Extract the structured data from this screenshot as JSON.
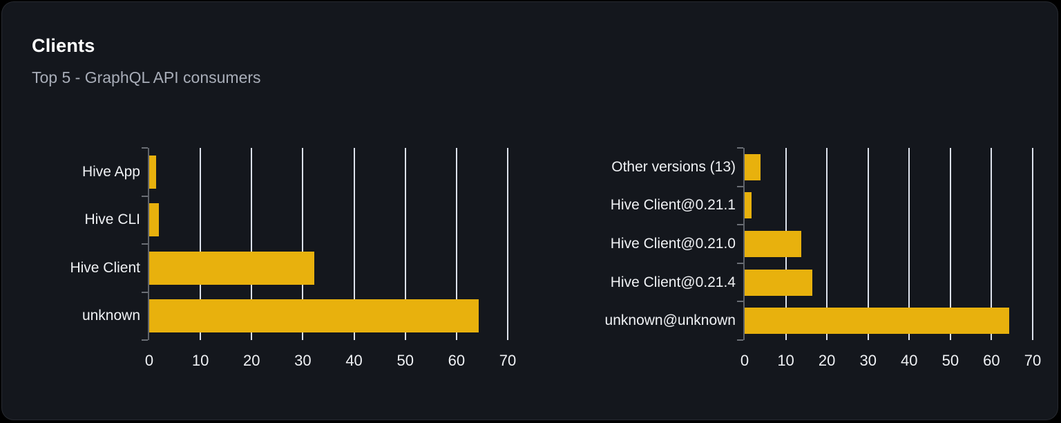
{
  "panel": {
    "title": "Clients",
    "subtitle": "Top 5 - GraphQL API consumers"
  },
  "colors": {
    "bar": "#e8b10d",
    "gridline": "#dde2ec",
    "axis_line": "#5f636a",
    "card_background": "#14171d",
    "card_border": "#272a31",
    "title_text": "#ffffff",
    "subtitle_text": "#a8adb8",
    "label_text": "#eff1f4"
  },
  "chart_data": [
    {
      "type": "bar",
      "orientation": "horizontal",
      "title": "",
      "xlabel": "",
      "ylabel": "",
      "categories": [
        "Hive App",
        "Hive CLI",
        "Hive Client",
        "unknown"
      ],
      "values": [
        1.3,
        1.9,
        32.2,
        64.4
      ],
      "xlim": [
        0,
        70
      ],
      "xticks": [
        0,
        10,
        20,
        30,
        40,
        50,
        60,
        70
      ],
      "grid": true,
      "legend": false,
      "bar_color": "#e8b10d"
    },
    {
      "type": "bar",
      "orientation": "horizontal",
      "title": "",
      "xlabel": "",
      "ylabel": "",
      "categories": [
        "Other versions (13)",
        "Hive Client@0.21.1",
        "Hive Client@0.21.0",
        "Hive Client@0.21.4",
        "unknown@unknown"
      ],
      "values": [
        3.8,
        1.6,
        13.7,
        16.4,
        64.3
      ],
      "xlim": [
        0,
        70
      ],
      "xticks": [
        0,
        10,
        20,
        30,
        40,
        50,
        60,
        70
      ],
      "grid": true,
      "legend": false,
      "bar_color": "#e8b10d"
    }
  ]
}
